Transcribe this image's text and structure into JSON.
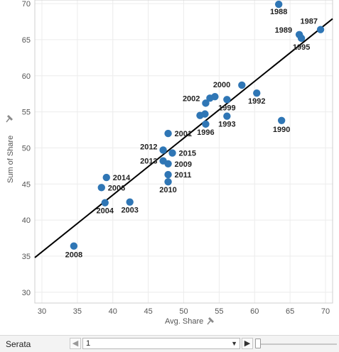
{
  "chart_data": {
    "type": "scatter",
    "xlabel": "Avg. Share",
    "ylabel": "Sum of Share",
    "xlim": [
      29,
      71
    ],
    "ylim": [
      28.5,
      70.5
    ],
    "x_ticks": [
      30,
      35,
      40,
      45,
      50,
      55,
      60,
      65,
      70
    ],
    "y_ticks": [
      30,
      35,
      40,
      45,
      50,
      55,
      60,
      65,
      70
    ],
    "grid": true,
    "point_color": "#2f76b5",
    "trend_line": {
      "x": [
        29,
        71
      ],
      "y": [
        34.8,
        67.9
      ]
    },
    "points": [
      {
        "label": "1988",
        "x": 63.4,
        "y": 69.9
      },
      {
        "label": "1987",
        "x": 69.3,
        "y": 66.4
      },
      {
        "label": "1989",
        "x": 66.3,
        "y": 65.7
      },
      {
        "label": "1995",
        "x": 66.6,
        "y": 65.2
      },
      {
        "label": "1992",
        "x": 60.3,
        "y": 57.6
      },
      {
        "label": "1990",
        "x": 63.8,
        "y": 53.8
      },
      {
        "label": "2000",
        "x": 58.2,
        "y": 58.7
      },
      {
        "label": "1999",
        "x": 56.1,
        "y": 56.7
      },
      {
        "label": "1993",
        "x": 56.1,
        "y": 54.4
      },
      {
        "label": "2002",
        "x": 53.1,
        "y": 56.2
      },
      {
        "label": "",
        "x": 53.7,
        "y": 56.9
      },
      {
        "label": "",
        "x": 54.4,
        "y": 57.1
      },
      {
        "label": "1996",
        "x": 53.1,
        "y": 53.3
      },
      {
        "label": "",
        "x": 52.3,
        "y": 54.5
      },
      {
        "label": "",
        "x": 53.0,
        "y": 54.7
      },
      {
        "label": "2001",
        "x": 47.8,
        "y": 52.0
      },
      {
        "label": "2012",
        "x": 47.1,
        "y": 49.7
      },
      {
        "label": "2015",
        "x": 48.4,
        "y": 49.3
      },
      {
        "label": "2013",
        "x": 47.1,
        "y": 48.2
      },
      {
        "label": "2009",
        "x": 47.8,
        "y": 47.8
      },
      {
        "label": "2011",
        "x": 47.8,
        "y": 46.3
      },
      {
        "label": "2010",
        "x": 47.8,
        "y": 45.3
      },
      {
        "label": "2014",
        "x": 39.1,
        "y": 45.9
      },
      {
        "label": "2006",
        "x": 38.4,
        "y": 44.5
      },
      {
        "label": "2004",
        "x": 38.9,
        "y": 42.4
      },
      {
        "label": "2003",
        "x": 42.4,
        "y": 42.5
      },
      {
        "label": "2008",
        "x": 34.5,
        "y": 36.4
      }
    ]
  },
  "filter": {
    "label": "Serata",
    "selected_value": "1",
    "prev_icon": "◀",
    "next_icon": "▶",
    "dropdown_icon": "▼"
  }
}
